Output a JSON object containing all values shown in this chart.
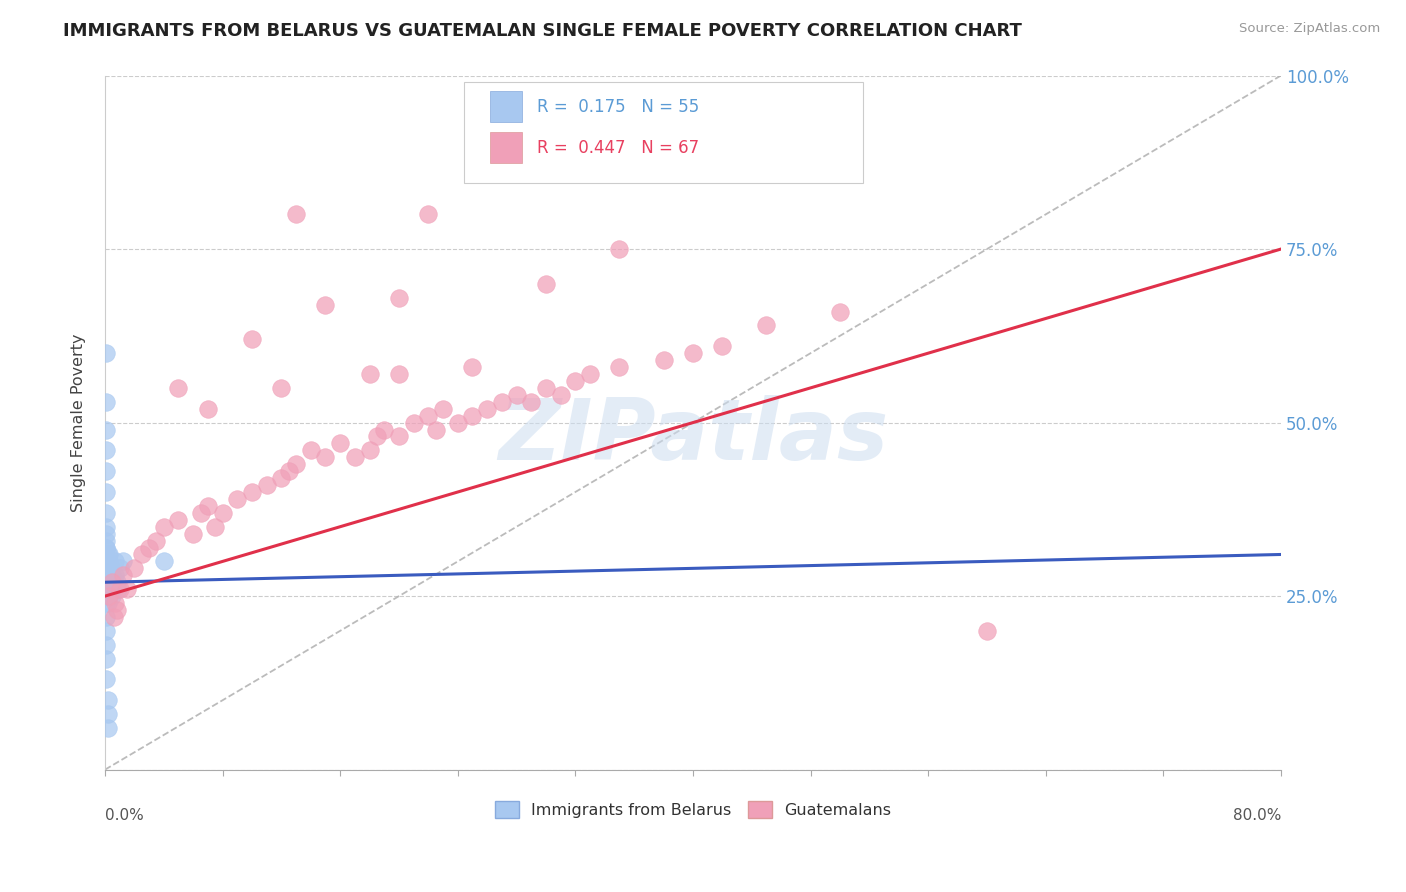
{
  "title": "IMMIGRANTS FROM BELARUS VS GUATEMALAN SINGLE FEMALE POVERTY CORRELATION CHART",
  "source": "Source: ZipAtlas.com",
  "ylabel": "Single Female Poverty",
  "xlim": [
    0,
    0.8
  ],
  "ylim": [
    0,
    1.0
  ],
  "yticks": [
    0.0,
    0.25,
    0.5,
    0.75,
    1.0
  ],
  "ytick_labels": [
    "",
    "25.0%",
    "50.0%",
    "75.0%",
    "100.0%"
  ],
  "blue_color": "#a8c8f0",
  "pink_color": "#f0a0b8",
  "blue_line_color": "#3a5bbf",
  "pink_line_color": "#e0304a",
  "blue_r": "0.175",
  "blue_n": "55",
  "pink_r": "0.447",
  "pink_n": "67",
  "blue_label": "Immigrants from Belarus",
  "pink_label": "Guatemalans",
  "watermark": "ZIPatlas",
  "blue_line": [
    [
      0.0,
      0.27
    ],
    [
      0.8,
      0.31
    ]
  ],
  "pink_line": [
    [
      0.0,
      0.25
    ],
    [
      0.8,
      0.75
    ]
  ],
  "diag_line": [
    [
      0.0,
      0.0
    ],
    [
      0.8,
      1.0
    ]
  ],
  "blue_scatter_x": [
    0.001,
    0.001,
    0.001,
    0.001,
    0.001,
    0.001,
    0.001,
    0.001,
    0.001,
    0.001,
    0.001,
    0.001,
    0.001,
    0.001,
    0.001,
    0.001,
    0.001,
    0.002,
    0.002,
    0.002,
    0.002,
    0.002,
    0.002,
    0.002,
    0.002,
    0.002,
    0.002,
    0.002,
    0.002,
    0.002,
    0.003,
    0.003,
    0.003,
    0.003,
    0.003,
    0.003,
    0.004,
    0.004,
    0.004,
    0.004,
    0.005,
    0.005,
    0.006,
    0.006,
    0.007,
    0.007,
    0.008,
    0.009,
    0.01,
    0.012,
    0.001,
    0.001,
    0.001,
    0.001,
    0.04
  ],
  "blue_scatter_y": [
    0.53,
    0.49,
    0.46,
    0.43,
    0.4,
    0.37,
    0.35,
    0.32,
    0.3,
    0.28,
    0.26,
    0.24,
    0.22,
    0.2,
    0.18,
    0.16,
    0.13,
    0.1,
    0.08,
    0.06,
    0.27,
    0.27,
    0.28,
    0.29,
    0.3,
    0.31,
    0.25,
    0.26,
    0.24,
    0.25,
    0.27,
    0.28,
    0.26,
    0.25,
    0.3,
    0.31,
    0.28,
    0.27,
    0.26,
    0.29,
    0.28,
    0.25,
    0.27,
    0.26,
    0.3,
    0.28,
    0.27,
    0.26,
    0.29,
    0.3,
    0.6,
    0.32,
    0.33,
    0.34,
    0.3
  ],
  "pink_scatter_x": [
    0.003,
    0.005,
    0.006,
    0.007,
    0.008,
    0.01,
    0.012,
    0.015,
    0.02,
    0.025,
    0.03,
    0.035,
    0.04,
    0.05,
    0.06,
    0.065,
    0.07,
    0.075,
    0.08,
    0.09,
    0.1,
    0.11,
    0.12,
    0.125,
    0.13,
    0.14,
    0.15,
    0.16,
    0.17,
    0.18,
    0.185,
    0.19,
    0.2,
    0.21,
    0.22,
    0.225,
    0.23,
    0.24,
    0.25,
    0.26,
    0.27,
    0.28,
    0.29,
    0.3,
    0.31,
    0.32,
    0.33,
    0.35,
    0.38,
    0.4,
    0.42,
    0.45,
    0.5,
    0.05,
    0.1,
    0.15,
    0.2,
    0.25,
    0.3,
    0.35,
    0.2,
    0.6,
    0.13,
    0.22,
    0.07,
    0.12,
    0.18
  ],
  "pink_scatter_y": [
    0.25,
    0.27,
    0.22,
    0.24,
    0.23,
    0.26,
    0.28,
    0.26,
    0.29,
    0.31,
    0.32,
    0.33,
    0.35,
    0.36,
    0.34,
    0.37,
    0.38,
    0.35,
    0.37,
    0.39,
    0.4,
    0.41,
    0.42,
    0.43,
    0.44,
    0.46,
    0.45,
    0.47,
    0.45,
    0.46,
    0.48,
    0.49,
    0.48,
    0.5,
    0.51,
    0.49,
    0.52,
    0.5,
    0.51,
    0.52,
    0.53,
    0.54,
    0.53,
    0.55,
    0.54,
    0.56,
    0.57,
    0.58,
    0.59,
    0.6,
    0.61,
    0.64,
    0.66,
    0.55,
    0.62,
    0.67,
    0.68,
    0.58,
    0.7,
    0.75,
    0.57,
    0.2,
    0.8,
    0.8,
    0.52,
    0.55,
    0.57
  ]
}
